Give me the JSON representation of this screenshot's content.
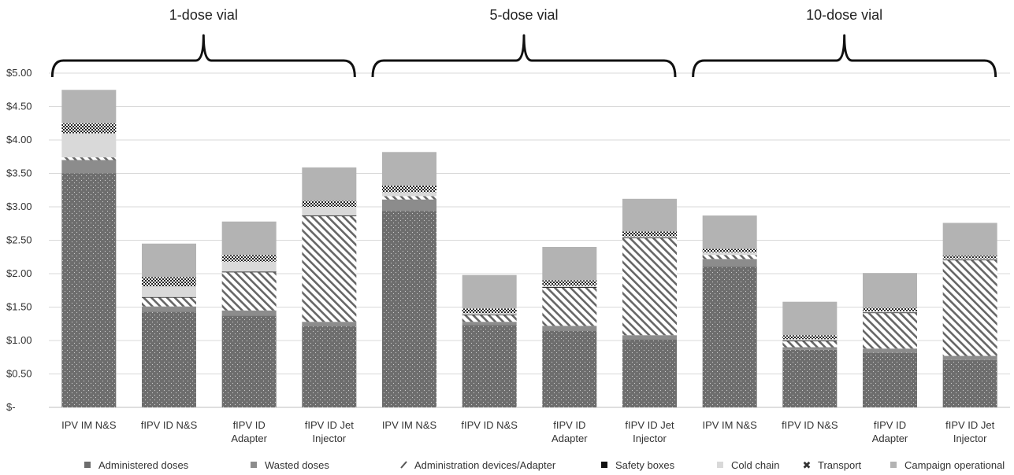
{
  "chart_data": {
    "type": "bar",
    "stacked": true,
    "groups": [
      {
        "label": "1-dose vial",
        "categories": [
          "IPV IM N&S",
          "fIPV ID N&S",
          "fIPV ID Adapter",
          "fIPV ID Jet Injector"
        ]
      },
      {
        "label": "5-dose vial",
        "categories": [
          "IPV IM N&S",
          "fIPV ID N&S",
          "fIPV ID Adapter",
          "fIPV ID Jet Injector"
        ]
      },
      {
        "label": "10-dose vial",
        "categories": [
          "IPV IM N&S",
          "fIPV ID N&S",
          "fIPV ID Adapter",
          "fIPV ID Jet Injector"
        ]
      }
    ],
    "categories": [
      [
        "IPV IM N&S"
      ],
      [
        "fIPV ID N&S"
      ],
      [
        "fIPV ID",
        "Adapter"
      ],
      [
        "fIPV ID Jet",
        "Injector"
      ],
      [
        "IPV IM N&S"
      ],
      [
        "fIPV ID N&S"
      ],
      [
        "fIPV ID",
        "Adapter"
      ],
      [
        "fIPV ID Jet",
        "Injector"
      ],
      [
        "IPV IM N&S"
      ],
      [
        "fIPV ID N&S"
      ],
      [
        "fIPV ID",
        "Adapter"
      ],
      [
        "fIPV ID Jet",
        "Injector"
      ]
    ],
    "series": [
      {
        "name": "Administered doses",
        "color": "#6d6d6d",
        "pattern": "dots",
        "values": [
          3.5,
          1.43,
          1.37,
          1.22,
          2.94,
          1.23,
          1.15,
          1.02,
          2.11,
          0.86,
          0.82,
          0.71
        ]
      },
      {
        "name": "Wasted doses",
        "color": "#8c8c8c",
        "pattern": "solid",
        "values": [
          0.2,
          0.08,
          0.08,
          0.06,
          0.17,
          0.05,
          0.07,
          0.06,
          0.11,
          0.04,
          0.06,
          0.06
        ]
      },
      {
        "name": "Administration devices/Adapter",
        "color": "#ffffff",
        "pattern": "hatch",
        "values": [
          0.04,
          0.13,
          0.57,
          1.58,
          0.05,
          0.1,
          0.57,
          1.45,
          0.06,
          0.09,
          0.53,
          1.43
        ]
      },
      {
        "name": "Safety boxes",
        "color": "#111111",
        "pattern": "solid",
        "values": [
          0.0,
          0.01,
          0.01,
          0.01,
          0.0,
          0.01,
          0.01,
          0.01,
          0.0,
          0.01,
          0.01,
          0.01
        ]
      },
      {
        "name": "Cold chain",
        "color": "#d9d9d9",
        "pattern": "solid",
        "values": [
          0.36,
          0.16,
          0.15,
          0.13,
          0.06,
          0.02,
          0.02,
          0.02,
          0.04,
          0.02,
          0.02,
          0.02
        ]
      },
      {
        "name": "Transport",
        "color": "#444444",
        "pattern": "check",
        "values": [
          0.15,
          0.14,
          0.1,
          0.09,
          0.1,
          0.07,
          0.08,
          0.07,
          0.05,
          0.06,
          0.05,
          0.04
        ]
      },
      {
        "name": "Campaign operational",
        "color": "#b3b3b3",
        "pattern": "solid",
        "values": [
          0.5,
          0.5,
          0.5,
          0.5,
          0.5,
          0.5,
          0.5,
          0.49,
          0.5,
          0.5,
          0.52,
          0.49
        ]
      }
    ],
    "ylim": [
      0,
      5
    ],
    "yticks": [
      "$-",
      "$0.50",
      "$1.00",
      "$1.50",
      "$2.00",
      "$2.50",
      "$3.00",
      "$3.50",
      "$4.00",
      "$4.50",
      "$5.00"
    ],
    "grid": true,
    "legend_position": "bottom"
  }
}
